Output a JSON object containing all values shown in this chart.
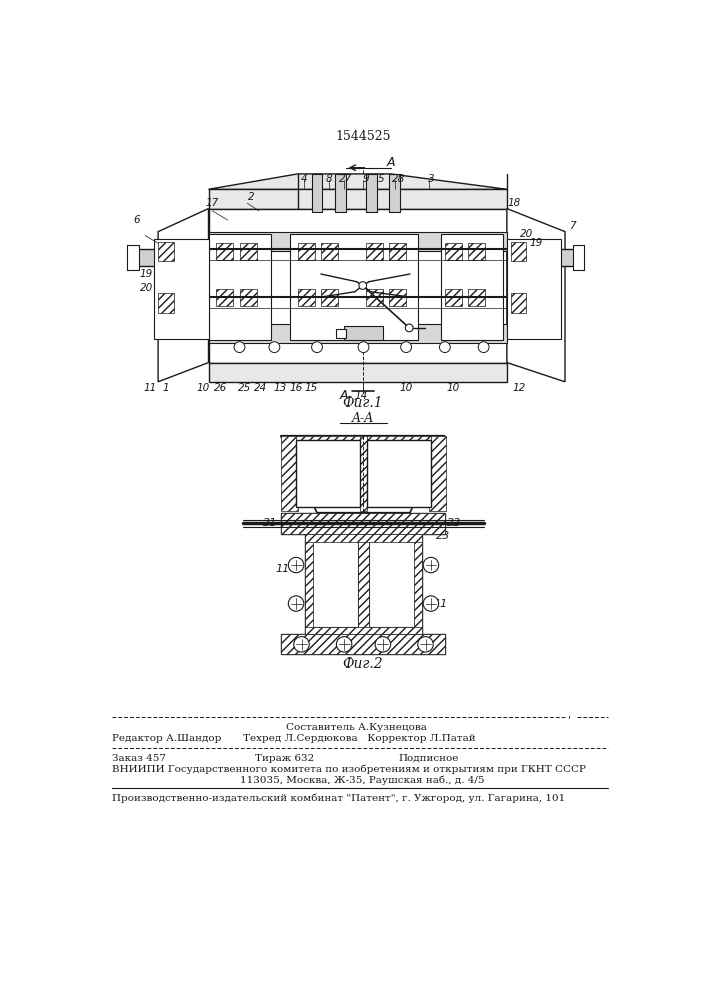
{
  "patent_number": "1544525",
  "fig1_caption": "Фиг.1",
  "fig2_caption": "Фиг.2",
  "section_label": "A-A",
  "editor_line": "Редактор А.Шандор",
  "composer_line": "Составитель А.Кузнецова",
  "techred_line": "Техред Л.Сердюкова",
  "corrector_line": "Корректор Л.Патай",
  "order_line": "Заказ 457",
  "tirazh_line": "Тираж 632",
  "podpisnoe_line": "Подписное",
  "vnipi_line": "ВНИИПИ Государственного комитета по изобретениям и открытиям при ГКНТ СССР",
  "address_line": "113035, Москва, Ж-35, Раушская наб., д. 4/5",
  "publisher_line": "Производственно-издательский комбинат \"Патент\", г. Ужгород, ул. Гагарина, 101",
  "bg_color": "#ffffff",
  "line_color": "#1a1a1a",
  "text_color": "#1a1a1a"
}
